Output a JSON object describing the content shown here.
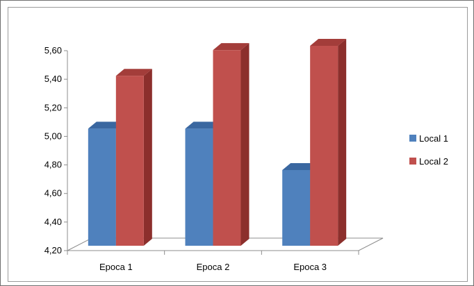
{
  "chart_data": {
    "type": "bar",
    "style": "3d-clustered-column",
    "categories": [
      "Epoca 1",
      "Epoca 2",
      "Epoca 3"
    ],
    "series": [
      {
        "name": "Local 1",
        "values": [
          5.02,
          5.02,
          4.73
        ],
        "color": "#4f81bd",
        "top_color": "#3a67a0",
        "side_color": "#2f5587"
      },
      {
        "name": "Local 2",
        "values": [
          5.39,
          5.57,
          5.6
        ],
        "color": "#c0504d",
        "top_color": "#a33d3a",
        "side_color": "#8c2f2c"
      }
    ],
    "yticks": [
      "4,20",
      "4,40",
      "4,60",
      "4,80",
      "5,00",
      "5,20",
      "5,40",
      "5,60"
    ],
    "ylim": [
      4.2,
      5.6
    ],
    "title": "",
    "xlabel": "",
    "ylabel": "",
    "grid": false,
    "legend_position": "right"
  }
}
